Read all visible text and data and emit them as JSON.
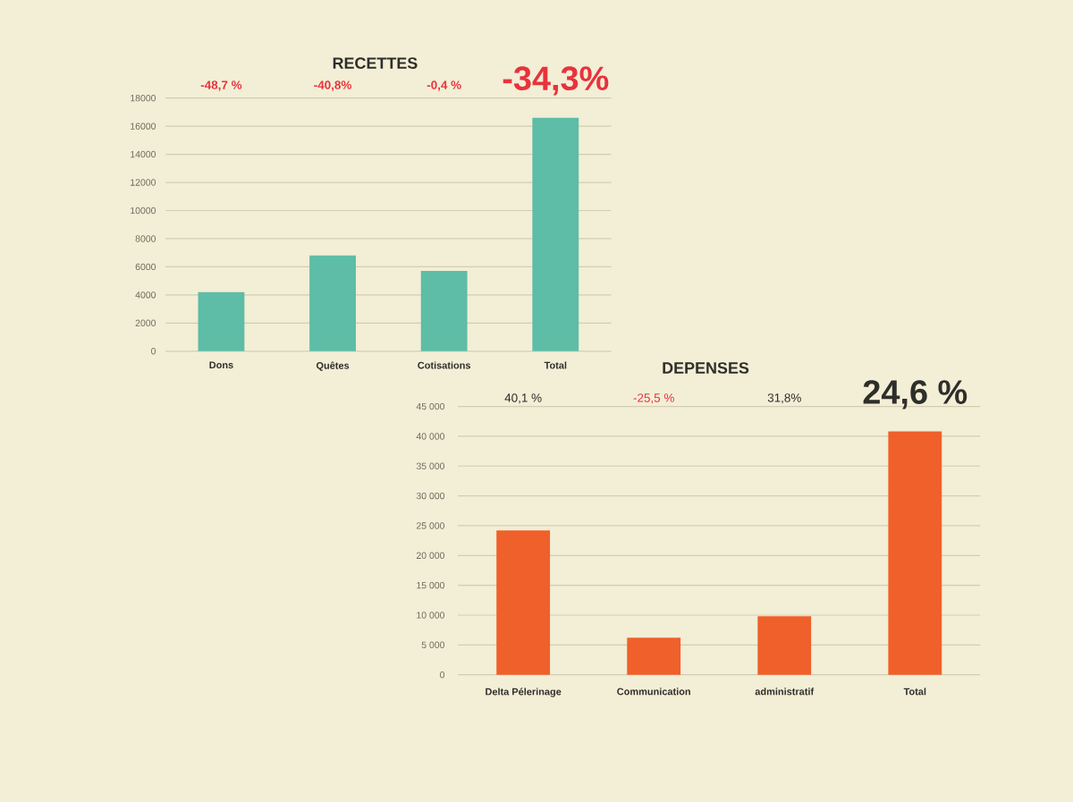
{
  "chart_data": [
    {
      "type": "bar",
      "title": "RECETTES",
      "categories": [
        "Dons",
        "Quêtes",
        "Cotisations",
        "Total"
      ],
      "values": [
        4200,
        6800,
        5700,
        16600
      ],
      "color": "#5dbda6",
      "ylim": [
        0,
        18000
      ],
      "yticks": [
        0,
        2000,
        4000,
        6000,
        8000,
        10000,
        12000,
        14000,
        16000,
        18000
      ],
      "grid": "y",
      "annotations": [
        "-48,7 %",
        "-40,8%",
        "-0,4 %",
        "-34,3%"
      ]
    },
    {
      "type": "bar",
      "title": "DEPENSES",
      "categories": [
        "Delta Pélerinage",
        "Communication",
        "administratif",
        "Total"
      ],
      "values": [
        24200,
        6200,
        9800,
        40800
      ],
      "color": "#f0602a",
      "ylim": [
        0,
        45000
      ],
      "yticks": [
        0,
        {
          "value": 5000,
          "label": "5 000"
        },
        {
          "value": 10000,
          "label": "10 000"
        },
        {
          "value": 15000,
          "label": "15 000"
        },
        {
          "value": 20000,
          "label": "20 000"
        },
        {
          "value": 25000,
          "label": "25 000"
        },
        {
          "value": 30000,
          "label": "30 000"
        },
        {
          "value": 35000,
          "label": "35 000"
        },
        {
          "value": 40000,
          "label": "40 000"
        },
        {
          "value": 45000,
          "label": "45 000"
        }
      ],
      "grid": "y",
      "annotations": [
        "40,1 %",
        "-25,5 %",
        "31,8%",
        "24,6 %"
      ]
    }
  ]
}
